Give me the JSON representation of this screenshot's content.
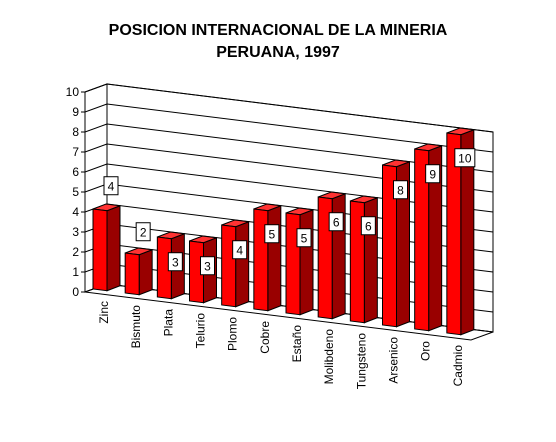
{
  "chart_data": {
    "type": "bar",
    "title_line1": "POSICION INTERNACIONAL DE LA MINERIA",
    "title_line2": "PERUANA, 1997",
    "categories": [
      "Zinc",
      "Bismuto",
      "Plata",
      "Telurio",
      "Plomo",
      "Cobre",
      "Estaño",
      "Molibdeno",
      "Tungsteno",
      "Arsenico",
      "Oro",
      "Cadmio"
    ],
    "values": [
      4,
      2,
      3,
      3,
      4,
      5,
      5,
      6,
      6,
      8,
      9,
      10
    ],
    "data_labels": [
      "4",
      "2",
      "3",
      "3",
      "4",
      "5",
      "5",
      "6",
      "6",
      "8",
      "9",
      "10"
    ],
    "y_ticks": [
      "0",
      "1",
      "2",
      "3",
      "4",
      "5",
      "6",
      "7",
      "8",
      "9",
      "10"
    ],
    "ylim": [
      0,
      10
    ],
    "grid": true,
    "legend": "none",
    "bar_color": "#ff0000"
  }
}
